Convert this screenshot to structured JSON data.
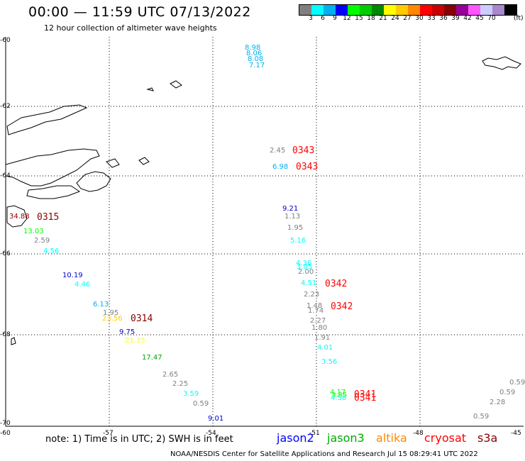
{
  "header": {
    "title": "00:00 — 11:59 UTC 07/13/2022",
    "subtitle": "12 hour collection of altimeter wave heights"
  },
  "color_scale": {
    "unit": "(ft)",
    "colors": [
      "#7f7f7f",
      "#00ffff",
      "#00b0f0",
      "#0000ff",
      "#00ff00",
      "#00cc00",
      "#008800",
      "#ffff00",
      "#ffcc00",
      "#ff8800",
      "#ff0000",
      "#cc0000",
      "#880000",
      "#990099",
      "#ff55ff",
      "#ccccff",
      "#aa88cc",
      "#000000"
    ],
    "labels": [
      "3",
      "6",
      "9",
      "12",
      "15",
      "18",
      "21",
      "24",
      "27",
      "30",
      "33",
      "36",
      "39",
      "42",
      "45",
      "70"
    ]
  },
  "axes": {
    "lat_labels": [
      "-60",
      "-62",
      "-64",
      "-66",
      "-68",
      "-70"
    ],
    "lon_labels": [
      "-60",
      "-57",
      "-54",
      "-51",
      "-48",
      "-45"
    ]
  },
  "wave_heights": [
    {
      "text": "8.98",
      "color": "#00b0f0"
    },
    {
      "text": "8.06",
      "color": "#00b0f0"
    },
    {
      "text": "8.08",
      "color": "#00b0f0"
    },
    {
      "text": "7.17",
      "color": "#00b0f0"
    },
    {
      "text": "2.45",
      "color": "#7f7f7f"
    },
    {
      "text": "6.98",
      "color": "#00b0f0"
    },
    {
      "text": "34.88",
      "color": "#880000"
    },
    {
      "text": "13.03",
      "color": "#00ff00"
    },
    {
      "text": "2.59",
      "color": "#7f7f7f"
    },
    {
      "text": "4.56",
      "color": "#00ffff"
    },
    {
      "text": "9.21",
      "color": "#0000cc"
    },
    {
      "text": "1.13",
      "color": "#7f7f7f"
    },
    {
      "text": "1.95",
      "color": "#7f7f7f"
    },
    {
      "text": "5.16",
      "color": "#00ffff"
    },
    {
      "text": "4.36",
      "color": "#00ffff"
    },
    {
      "text": "3.05",
      "color": "#00ffff"
    },
    {
      "text": "2.00",
      "color": "#7f7f7f"
    },
    {
      "text": "10.19",
      "color": "#0000cc"
    },
    {
      "text": "4.46",
      "color": "#00ffff"
    },
    {
      "text": "4.51",
      "color": "#00ffff"
    },
    {
      "text": "2.23",
      "color": "#7f7f7f"
    },
    {
      "text": "6.13",
      "color": "#00b0f0"
    },
    {
      "text": "1.95",
      "color": "#7f7f7f"
    },
    {
      "text": "23.56",
      "color": "#ffcc00"
    },
    {
      "text": "1.48",
      "color": "#7f7f7f"
    },
    {
      "text": "1.74",
      "color": "#7f7f7f"
    },
    {
      "text": "2.27",
      "color": "#7f7f7f"
    },
    {
      "text": "9.75",
      "color": "#0000cc"
    },
    {
      "text": "1.80",
      "color": "#7f7f7f"
    },
    {
      "text": "21.35",
      "color": "#ffff00"
    },
    {
      "text": "1.91",
      "color": "#7f7f7f"
    },
    {
      "text": "4.01",
      "color": "#00ffff"
    },
    {
      "text": "17.47",
      "color": "#00aa00"
    },
    {
      "text": "3.56",
      "color": "#00ffff"
    },
    {
      "text": "2.65",
      "color": "#7f7f7f"
    },
    {
      "text": "2.25",
      "color": "#7f7f7f"
    },
    {
      "text": "3.59",
      "color": "#00ffff"
    },
    {
      "text": "0.59",
      "color": "#7f7f7f"
    },
    {
      "text": "9.01",
      "color": "#0000cc"
    },
    {
      "text": "4.17",
      "color": "#00ff00"
    },
    {
      "text": "3.85",
      "color": "#00ff00"
    },
    {
      "text": "4.58",
      "color": "#00ffff"
    },
    {
      "text": "0.59",
      "color": "#7f7f7f"
    },
    {
      "text": "0.59",
      "color": "#7f7f7f"
    },
    {
      "text": "2.28",
      "color": "#7f7f7f"
    },
    {
      "text": "0.59",
      "color": "#7f7f7f"
    }
  ],
  "pass_times": [
    {
      "text": "0343",
      "color": "#ff0000"
    },
    {
      "text": "0343",
      "color": "#ff0000"
    },
    {
      "text": "0315",
      "color": "#880000"
    },
    {
      "text": "0342",
      "color": "#ff0000"
    },
    {
      "text": "0342",
      "color": "#ff0000"
    },
    {
      "text": "0314",
      "color": "#880000"
    },
    {
      "text": "0341",
      "color": "#ff0000"
    },
    {
      "text": "0341",
      "color": "#ff0000"
    }
  ],
  "footer": {
    "note": "note: 1) Time is in UTC; 2) SWH is in feet",
    "satellites": [
      {
        "name": "jason2",
        "color": "#0000ff"
      },
      {
        "name": "jason3",
        "color": "#00aa00"
      },
      {
        "name": "altika",
        "color": "#ff8800"
      },
      {
        "name": "cryosat",
        "color": "#ff0000"
      },
      {
        "name": "s3a",
        "color": "#880000"
      }
    ],
    "credit": "NOAA/NESDIS Center for Satellite Applications and Research   Jul 15 08:29:41 UTC 2022"
  }
}
